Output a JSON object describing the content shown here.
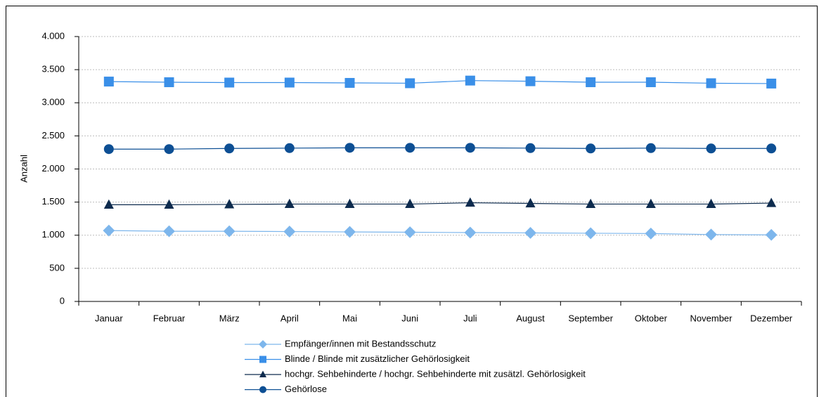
{
  "chart_data": {
    "type": "line",
    "y_label": "Anzahl",
    "categories": [
      "Januar",
      "Februar",
      "März",
      "April",
      "Mai",
      "Juni",
      "Juli",
      "August",
      "September",
      "Oktober",
      "November",
      "Dezember"
    ],
    "series": [
      {
        "name": "Empfänger/innen mit Bestandsschutz",
        "color": "#7db6ec",
        "marker": "diamond",
        "values": [
          1070,
          1060,
          1060,
          1055,
          1050,
          1045,
          1040,
          1035,
          1030,
          1025,
          1010,
          1005
        ]
      },
      {
        "name": "Blinde / Blinde mit zusätzlicher Gehörlosigkeit",
        "color": "#3a8fe8",
        "marker": "square",
        "values": [
          3320,
          3310,
          3305,
          3305,
          3300,
          3295,
          3335,
          3325,
          3310,
          3310,
          3295,
          3290
        ]
      },
      {
        "name": "hochgr. Sehbehinderte / hochgr. Sehbehinderte mit zusätzl. Gehörlosigkeit",
        "color": "#0d2b4e",
        "marker": "triangle",
        "values": [
          1460,
          1460,
          1465,
          1470,
          1470,
          1470,
          1490,
          1480,
          1470,
          1470,
          1470,
          1485
        ]
      },
      {
        "name": "Gehörlose",
        "color": "#0d4f94",
        "marker": "circle",
        "values": [
          2300,
          2300,
          2310,
          2315,
          2320,
          2320,
          2320,
          2315,
          2310,
          2315,
          2310,
          2310
        ]
      }
    ],
    "ylim": [
      0,
      4000
    ],
    "yticks": [
      0,
      500,
      {
        "value": 1000,
        "label": "1.000"
      },
      {
        "value": 1500,
        "label": "1.500"
      },
      {
        "value": 2000,
        "label": "2.000"
      },
      {
        "value": 2500,
        "label": "2.500"
      },
      {
        "value": 3000,
        "label": "3.000"
      },
      {
        "value": 3500,
        "label": "3.500"
      },
      {
        "value": 4000,
        "label": "4.000"
      }
    ],
    "grid": true,
    "legend": "bottom"
  }
}
